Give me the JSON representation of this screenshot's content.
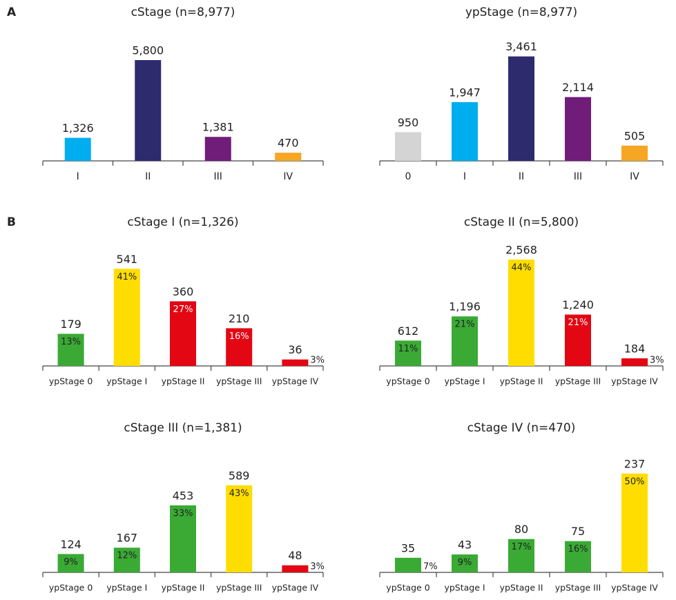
{
  "chart_data": [
    {
      "panel": "A",
      "type": "bar",
      "title": "cStage (n=8,977)",
      "categories": [
        "I",
        "II",
        "III",
        "IV"
      ],
      "values": [
        1326,
        5800,
        1381,
        470
      ],
      "value_labels": [
        "1,326",
        "5,800",
        "1,381",
        "470"
      ],
      "colors": [
        "#00aeef",
        "#2e2a6e",
        "#6f1d78",
        "#f5a623"
      ],
      "ylim": [
        0,
        6000
      ]
    },
    {
      "type": "bar",
      "title": "ypStage (n=8,977)",
      "categories": [
        "0",
        "I",
        "II",
        "III",
        "IV"
      ],
      "values": [
        950,
        1947,
        3461,
        2114,
        505
      ],
      "value_labels": [
        "950",
        "1,947",
        "3,461",
        "2,114",
        "505"
      ],
      "colors": [
        "#d4d4d4",
        "#00aeef",
        "#2e2a6e",
        "#6f1d78",
        "#f5a623"
      ],
      "ylim": [
        0,
        3500
      ]
    },
    {
      "panel": "B",
      "type": "bar",
      "title": "cStage I (n=1,326)",
      "categories": [
        "ypStage 0",
        "ypStage I",
        "ypStage II",
        "ypStage III",
        "ypStage IV"
      ],
      "values": [
        179,
        541,
        360,
        210,
        36
      ],
      "value_labels": [
        "179",
        "541",
        "360",
        "210",
        "36"
      ],
      "share_labels": [
        "13%",
        "41%",
        "27%",
        "16%",
        "3%"
      ],
      "colors": [
        "#3aaa35",
        "#ffdd00",
        "#e30613",
        "#e30613",
        "#e30613"
      ],
      "ylim": [
        0,
        600
      ]
    },
    {
      "type": "bar",
      "title": "cStage II (n=5,800)",
      "categories": [
        "ypStage 0",
        "ypStage I",
        "ypStage II",
        "ypStage III",
        "ypStage IV"
      ],
      "values": [
        612,
        1196,
        2568,
        1240,
        184
      ],
      "value_labels": [
        "612",
        "1,196",
        "2,568",
        "1,240",
        "184"
      ],
      "share_labels": [
        "11%",
        "21%",
        "44%",
        "21%",
        "3%"
      ],
      "colors": [
        "#3aaa35",
        "#3aaa35",
        "#ffdd00",
        "#e30613",
        "#e30613"
      ],
      "ylim": [
        0,
        2600
      ]
    },
    {
      "type": "bar",
      "title": "cStage III (n=1,381)",
      "categories": [
        "ypStage 0",
        "ypStage I",
        "ypStage II",
        "ypStage III",
        "ypStage IV"
      ],
      "values": [
        124,
        167,
        453,
        589,
        48
      ],
      "value_labels": [
        "124",
        "167",
        "453",
        "589",
        "48"
      ],
      "share_labels": [
        "9%",
        "12%",
        "33%",
        "43%",
        "3%"
      ],
      "colors": [
        "#3aaa35",
        "#3aaa35",
        "#3aaa35",
        "#ffdd00",
        "#e30613"
      ],
      "ylim": [
        0,
        700
      ]
    },
    {
      "type": "bar",
      "title": "cStage IV (n=470)",
      "categories": [
        "ypStage 0",
        "ypStage I",
        "ypStage II",
        "ypStage III",
        "ypStage IV"
      ],
      "values": [
        35,
        43,
        80,
        75,
        237
      ],
      "value_labels": [
        "35",
        "43",
        "80",
        "75",
        "237"
      ],
      "share_labels": [
        "7%",
        "9%",
        "17%",
        "16%",
        "50%"
      ],
      "colors": [
        "#3aaa35",
        "#3aaa35",
        "#3aaa35",
        "#3aaa35",
        "#ffdd00"
      ],
      "ylim": [
        0,
        250
      ]
    }
  ]
}
